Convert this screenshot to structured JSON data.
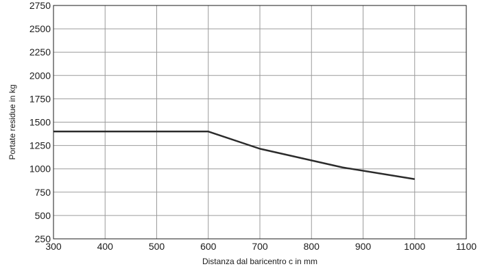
{
  "chart_data": {
    "type": "line",
    "xlabel": "Distanza dal baricentro c in mm",
    "ylabel": "Portate residue in kg",
    "xlim": [
      300,
      1100
    ],
    "ylim": [
      250,
      2750
    ],
    "x_ticks": [
      300,
      400,
      500,
      600,
      700,
      800,
      900,
      1000,
      1100
    ],
    "y_ticks": [
      250,
      500,
      750,
      1000,
      1250,
      1500,
      1750,
      2000,
      2250,
      2500,
      2750
    ],
    "grid": true,
    "series": [
      {
        "color": "#2b2b2b",
        "x": [
          300,
          600,
          700,
          860,
          1000
        ],
        "y": [
          1400,
          1400,
          1215,
          1015,
          890
        ]
      }
    ]
  }
}
